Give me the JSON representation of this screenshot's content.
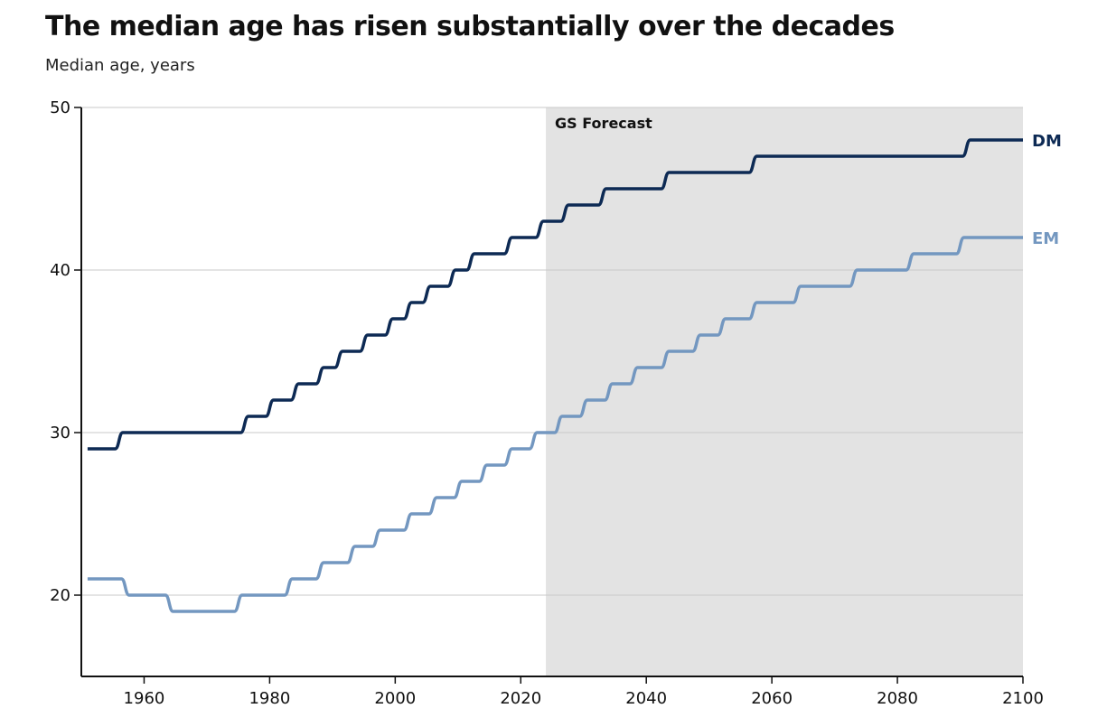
{
  "colors": {
    "dm": "#0d2a54",
    "em": "#7397c0",
    "forecast_band": "#e3e3e3",
    "grid": "#c8c8c8",
    "axis": "#111111"
  },
  "chart_data": {
    "type": "line",
    "title": "The median age has risen substantially over the decades",
    "subtitle": "Median age, years",
    "xlabel": "",
    "ylabel": "",
    "xlim": [
      1950,
      2100
    ],
    "ylim": [
      15,
      50
    ],
    "x_ticks": [
      1960,
      1980,
      2000,
      2020,
      2040,
      2060,
      2080,
      2100
    ],
    "y_ticks": [
      20,
      30,
      40,
      50
    ],
    "grid": true,
    "annotation": {
      "label": "GS Forecast",
      "x_start": 2024,
      "x_end": 2100
    },
    "series": [
      {
        "name": "DM",
        "step": true,
        "points": [
          [
            1951,
            29
          ],
          [
            1956,
            30
          ],
          [
            1976,
            31
          ],
          [
            1980,
            32
          ],
          [
            1984,
            33
          ],
          [
            1988,
            34
          ],
          [
            1991,
            35
          ],
          [
            1995,
            36
          ],
          [
            1999,
            37
          ],
          [
            2002,
            38
          ],
          [
            2005,
            39
          ],
          [
            2009,
            40
          ],
          [
            2012,
            41
          ],
          [
            2018,
            42
          ],
          [
            2023,
            43
          ],
          [
            2027,
            44
          ],
          [
            2033,
            45
          ],
          [
            2043,
            46
          ],
          [
            2057,
            47
          ],
          [
            2091,
            48
          ],
          [
            2100,
            48
          ]
        ]
      },
      {
        "name": "EM",
        "step": true,
        "points": [
          [
            1951,
            21
          ],
          [
            1957,
            20
          ],
          [
            1964,
            19
          ],
          [
            1975,
            20
          ],
          [
            1983,
            21
          ],
          [
            1988,
            22
          ],
          [
            1993,
            23
          ],
          [
            1997,
            24
          ],
          [
            2002,
            25
          ],
          [
            2006,
            26
          ],
          [
            2010,
            27
          ],
          [
            2014,
            28
          ],
          [
            2018,
            29
          ],
          [
            2022,
            30
          ],
          [
            2026,
            31
          ],
          [
            2030,
            32
          ],
          [
            2034,
            33
          ],
          [
            2038,
            34
          ],
          [
            2043,
            35
          ],
          [
            2048,
            36
          ],
          [
            2052,
            37
          ],
          [
            2057,
            38
          ],
          [
            2064,
            39
          ],
          [
            2073,
            40
          ],
          [
            2082,
            41
          ],
          [
            2090,
            42
          ],
          [
            2100,
            42
          ]
        ]
      }
    ]
  }
}
